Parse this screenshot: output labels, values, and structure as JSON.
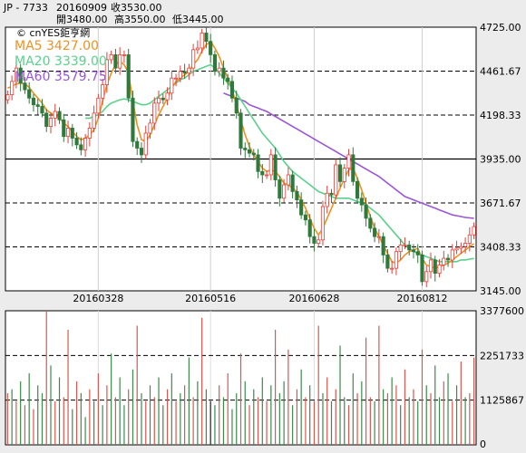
{
  "header": {
    "ticker": "JP - 7733",
    "date": "20160909",
    "close": "收3530.00",
    "open": "開3480.00",
    "high": "高3550.00",
    "low": "低3445.00"
  },
  "legend": {
    "source": "© cnYES鉅亨網",
    "ma5": "MA5 3427.00",
    "ma20": "MA20 3339.00",
    "ma60": "MA60 3579.75"
  },
  "colors": {
    "up": "#e0403a",
    "down": "#2f7a3a",
    "ma5": "#f0901f",
    "ma20": "#5bd08c",
    "ma60": "#9a55d8",
    "volume_up": "#d9574f",
    "volume_down": "#3c8a4a",
    "volume_other": "#222222"
  },
  "chart_data": {
    "type": "candlestick",
    "x_ticks": [
      "20160328",
      "20160516",
      "20160628",
      "20160812"
    ],
    "price_ticks": [
      "4725.00",
      "4461.67",
      "4198.33",
      "3935.00",
      "3671.67",
      "3408.33",
      "3145.00"
    ],
    "price_range": [
      3145,
      4725
    ],
    "volume_ticks": [
      "3377600",
      "2251733",
      "1125867",
      "0"
    ],
    "volume_range": [
      0,
      3377600
    ],
    "close": [
      4320,
      4400,
      4480,
      4390,
      4350,
      4300,
      4260,
      4250,
      4210,
      4130,
      4180,
      4220,
      4170,
      4070,
      4120,
      4060,
      4020,
      3990,
      4060,
      4120,
      4210,
      4300,
      4380,
      4530,
      4560,
      4480,
      4560,
      4560,
      4300,
      4040,
      4000,
      3960,
      4090,
      4150,
      4270,
      4300,
      4290,
      4330,
      4420,
      4420,
      4460,
      4450,
      4480,
      4590,
      4600,
      4690,
      4640,
      4560,
      4460,
      4480,
      4420,
      4400,
      4300,
      4210,
      4000,
      3990,
      3970,
      3960,
      3860,
      3840,
      3840,
      3960,
      3810,
      3700,
      3780,
      3840,
      3740,
      3690,
      3600,
      3570,
      3470,
      3430,
      3450,
      3650,
      3730,
      3720,
      3900,
      3800,
      3880,
      3960,
      3800,
      3700,
      3660,
      3580,
      3520,
      3470,
      3470,
      3360,
      3280,
      3280,
      3380,
      3420,
      3420,
      3390,
      3380,
      3360,
      3200,
      3260,
      3330,
      3250,
      3300,
      3340,
      3330,
      3390,
      3400,
      3410,
      3430,
      3480,
      3530
    ],
    "ma5": [
      4360,
      4370,
      4385,
      4390,
      4385,
      4365,
      4330,
      4300,
      4270,
      4230,
      4210,
      4195,
      4180,
      4150,
      4130,
      4100,
      4070,
      4050,
      4060,
      4080,
      4110,
      4180,
      4280,
      4380,
      4450,
      4500,
      4520,
      4500,
      4450,
      4280,
      4140,
      4050,
      4040,
      4080,
      4140,
      4200,
      4250,
      4300,
      4360,
      4400,
      4420,
      4440,
      4460,
      4500,
      4530,
      4580,
      4620,
      4640,
      4600,
      4550,
      4480,
      4420,
      4350,
      4260,
      4170,
      4080,
      4010,
      3960,
      3920,
      3880,
      3860,
      3870,
      3860,
      3830,
      3790,
      3780,
      3760,
      3740,
      3690,
      3640,
      3580,
      3520,
      3480,
      3520,
      3580,
      3640,
      3700,
      3760,
      3820,
      3870,
      3880,
      3820,
      3750,
      3670,
      3590,
      3520,
      3470,
      3420,
      3370,
      3320,
      3310,
      3330,
      3360,
      3380,
      3390,
      3400,
      3340,
      3300,
      3290,
      3280,
      3290,
      3300,
      3310,
      3330,
      3350,
      3370,
      3390,
      3410,
      3427
    ],
    "ma20": [
      null,
      null,
      null,
      null,
      null,
      null,
      null,
      null,
      null,
      null,
      null,
      null,
      null,
      null,
      null,
      null,
      null,
      null,
      4180,
      4180,
      4190,
      4200,
      4220,
      4250,
      4270,
      4280,
      4290,
      4295,
      4290,
      4280,
      4270,
      4260,
      4260,
      4270,
      4290,
      4310,
      4330,
      4350,
      4370,
      4390,
      4410,
      4420,
      4440,
      4460,
      4470,
      4480,
      4490,
      4500,
      4480,
      4450,
      4420,
      4390,
      4360,
      4330,
      4290,
      4250,
      4210,
      4170,
      4130,
      4090,
      4060,
      4030,
      4000,
      3960,
      3920,
      3890,
      3860,
      3840,
      3820,
      3800,
      3780,
      3760,
      3740,
      3730,
      3720,
      3710,
      3700,
      3700,
      3700,
      3700,
      3690,
      3680,
      3670,
      3660,
      3640,
      3620,
      3600,
      3570,
      3540,
      3510,
      3480,
      3450,
      3420,
      3400,
      3380,
      3370,
      3360,
      3350,
      3340,
      3330,
      3320,
      3320,
      3320,
      3320,
      3320,
      3330,
      3330,
      3335,
      3339
    ],
    "ma60": [
      null,
      null,
      null,
      null,
      null,
      null,
      null,
      null,
      null,
      null,
      null,
      null,
      null,
      null,
      null,
      null,
      null,
      null,
      null,
      null,
      null,
      null,
      null,
      null,
      null,
      null,
      null,
      null,
      null,
      null,
      null,
      null,
      null,
      null,
      null,
      null,
      null,
      null,
      null,
      null,
      null,
      null,
      null,
      null,
      null,
      null,
      null,
      null,
      null,
      null,
      4330,
      4320,
      4310,
      4300,
      4290,
      4280,
      4260,
      4250,
      4240,
      4230,
      4220,
      4205,
      4190,
      4175,
      4160,
      4145,
      4130,
      4115,
      4100,
      4085,
      4070,
      4055,
      4040,
      4025,
      4010,
      3995,
      3980,
      3965,
      3950,
      3935,
      3920,
      3905,
      3890,
      3875,
      3860,
      3845,
      3830,
      3810,
      3790,
      3770,
      3750,
      3730,
      3710,
      3700,
      3690,
      3680,
      3670,
      3660,
      3650,
      3640,
      3630,
      3620,
      3610,
      3600,
      3595,
      3590,
      3585,
      3582,
      3580
    ],
    "volume": [
      1300000,
      1400000,
      1100000,
      1600000,
      1000000,
      1800000,
      900000,
      1500000,
      1300000,
      3377600,
      2000000,
      1100000,
      1700000,
      1200000,
      2900000,
      900000,
      1600000,
      1300000,
      700000,
      1400000,
      1100000,
      1800000,
      1000000,
      1500000,
      2300000,
      1200000,
      1700000,
      1000000,
      1400000,
      1900000,
      3000000,
      1300000,
      1100000,
      1500000,
      1200000,
      1700000,
      1000000,
      1400000,
      1800000,
      1100000,
      1300000,
      1500000,
      2200000,
      1200000,
      1600000,
      3200000,
      1400000,
      1100000,
      1000000,
      1500000,
      1200000,
      1800000,
      900000,
      1300000,
      2300000,
      1600000,
      1000000,
      1400000,
      1200000,
      1700000,
      1100000,
      1500000,
      2900000,
      1300000,
      1600000,
      2400000,
      1000000,
      1400000,
      1900000,
      1200000,
      1500000,
      1100000,
      3000000,
      1300000,
      1700000,
      1100000,
      1400000,
      2500000,
      1200000,
      1000000,
      1800000,
      1300000,
      1600000,
      2700000,
      1200000,
      1100000,
      3000000,
      1400000,
      1300000,
      1700000,
      1500000,
      1000000,
      1900000,
      1200000,
      1400000,
      1100000,
      2400000,
      1500000,
      1300000,
      2000000,
      1200000,
      1600000,
      1800000,
      1100000,
      1500000,
      2100000,
      1200000,
      1300000,
      2200000
    ],
    "volume_color_index": [
      0,
      1,
      0,
      1,
      0,
      1,
      0,
      1,
      1,
      0,
      1,
      0,
      1,
      0,
      0,
      1,
      0,
      1,
      1,
      0,
      1,
      0,
      1,
      0,
      1,
      0,
      1,
      1,
      0,
      1,
      0,
      1,
      0,
      1,
      0,
      1,
      1,
      0,
      1,
      0,
      1,
      0,
      1,
      0,
      1,
      0,
      1,
      2,
      1,
      0,
      1,
      0,
      1,
      1,
      0,
      1,
      0,
      1,
      0,
      1,
      0,
      1,
      0,
      1,
      1,
      0,
      1,
      0,
      1,
      0,
      1,
      0,
      0,
      1,
      0,
      1,
      0,
      1,
      1,
      0,
      1,
      0,
      1,
      0,
      0,
      1,
      0,
      1,
      0,
      1,
      0,
      1,
      0,
      1,
      0,
      1,
      0,
      1,
      0,
      1,
      1,
      0,
      1,
      0,
      1,
      0,
      1,
      0,
      0
    ]
  }
}
